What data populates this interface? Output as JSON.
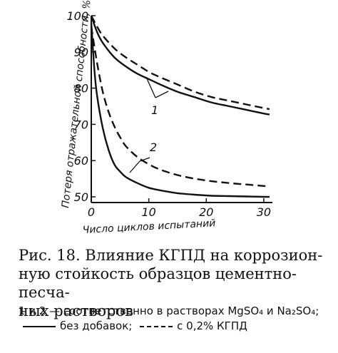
{
  "chart_data": {
    "type": "line",
    "ylabel": "Потеря отражательной способности, %",
    "xlabel": "Число циклов испытаний",
    "xlim": [
      0,
      31
    ],
    "ylim": [
      50,
      100
    ],
    "x_ticks": [
      0,
      10,
      20,
      30
    ],
    "x_tick_labels": [
      "0",
      "10",
      "20",
      "30"
    ],
    "y_ticks": [
      50,
      60,
      70,
      80,
      90,
      100
    ],
    "y_tick_labels": [
      "50",
      "60",
      "70",
      "80",
      "90",
      "100"
    ],
    "grid": false,
    "series_labels": {
      "one": "1",
      "two": "2"
    },
    "series": [
      {
        "group": "1",
        "style": "solid",
        "x": [
          0,
          1,
          2,
          4,
          6,
          8,
          10,
          12,
          15,
          18,
          21,
          24,
          27,
          30,
          31
        ],
        "y": [
          100,
          95.5,
          92.5,
          88.5,
          86,
          84,
          82.5,
          81,
          79,
          77.5,
          76,
          75,
          74,
          73,
          72.7
        ]
      },
      {
        "group": "1",
        "style": "dashed",
        "x": [
          0,
          1,
          2,
          4,
          6,
          8,
          10,
          12,
          15,
          18,
          21,
          24,
          27,
          30,
          31
        ],
        "y": [
          100,
          97,
          94.5,
          91,
          88.5,
          86.5,
          84.5,
          83,
          81,
          79,
          77.5,
          76.5,
          75.5,
          74.5,
          74.2
        ]
      },
      {
        "group": "2",
        "style": "solid",
        "x": [
          0,
          0.5,
          1,
          2,
          3,
          4,
          5,
          6,
          8,
          10,
          12,
          15,
          18,
          21,
          24,
          27,
          30,
          31
        ],
        "y": [
          98,
          86,
          78,
          69,
          63,
          59,
          57,
          55.5,
          53.8,
          52.5,
          51.8,
          51,
          50.6,
          50.3,
          50.2,
          50.1,
          50,
          50
        ]
      },
      {
        "group": "2",
        "style": "dashed",
        "x": [
          0,
          1,
          2,
          3,
          4,
          5,
          6,
          8,
          10,
          12,
          15,
          18,
          21,
          24,
          27,
          30,
          31
        ],
        "y": [
          97,
          87,
          79,
          73.5,
          69.5,
          66.5,
          64,
          61,
          59,
          57.5,
          56,
          55,
          54.3,
          53.8,
          53.4,
          53,
          52.9
        ]
      }
    ]
  },
  "caption": {
    "title_line1": "Рис. 18. Влияние КГПД на коррозион-",
    "title_line2": "ную стойкость образцов цементно-песча-",
    "title_line3": "ных растворов"
  },
  "legend": {
    "part1": "1 и 2 — соответственно в растворах MgSO₄ и Na₂SO₄;",
    "solid_label": "без добавок;",
    "dashed_label": "с 0,2% КГПД"
  }
}
